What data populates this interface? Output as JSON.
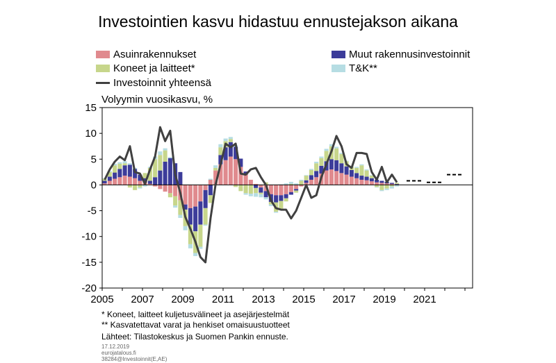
{
  "title": "Investointien kasvu hidastuu ennustejakson aikana",
  "legend": {
    "items": [
      {
        "label": "Asuinrakennukset",
        "color": "#e08a8e",
        "kind": "bar"
      },
      {
        "label": "Muut rakennusinvestoinnit",
        "color": "#3c3c9a",
        "kind": "bar"
      },
      {
        "label": "Koneet ja laitteet*",
        "color": "#c7d68b",
        "kind": "bar"
      },
      {
        "label": "T&K**",
        "color": "#b6dde3",
        "kind": "bar"
      },
      {
        "label": "Investoinnit yhteensä",
        "color": "#404040",
        "kind": "line"
      }
    ]
  },
  "notes": [
    "* Koneet, laitteet kuljetusvälineet ja asejärjestelmät",
    "** Kasvatettavat varat ja henkiset omaisuustuotteet",
    "Lähteet: Tilastokeskus ja Suomen Pankin ennuste."
  ],
  "footer": [
    "17.12.2019",
    "eurojatalous.fi",
    "38284@Investoinnit(E,AE)"
  ],
  "chart_data": {
    "type": "bar",
    "title": "Investointien kasvu hidastuu ennustejakson aikana",
    "ylabel": "Volyymin vuosikasvu, %",
    "xlabel": "",
    "ylim": [
      -20,
      15
    ],
    "yticks": [
      15,
      10,
      5,
      0,
      -5,
      -10,
      -15,
      -20
    ],
    "xticks": [
      "2005",
      "2007",
      "2009",
      "2011",
      "2013",
      "2015",
      "2017",
      "2019",
      "2021"
    ],
    "x_start_year": 2005,
    "stacked": true,
    "quarters": [
      "2005Q1",
      "2005Q2",
      "2005Q3",
      "2005Q4",
      "2006Q1",
      "2006Q2",
      "2006Q3",
      "2006Q4",
      "2007Q1",
      "2007Q2",
      "2007Q3",
      "2007Q4",
      "2008Q1",
      "2008Q2",
      "2008Q3",
      "2008Q4",
      "2009Q1",
      "2009Q2",
      "2009Q3",
      "2009Q4",
      "2010Q1",
      "2010Q2",
      "2010Q3",
      "2010Q4",
      "2011Q1",
      "2011Q2",
      "2011Q3",
      "2011Q4",
      "2012Q1",
      "2012Q2",
      "2012Q3",
      "2012Q4",
      "2013Q1",
      "2013Q2",
      "2013Q3",
      "2013Q4",
      "2014Q1",
      "2014Q2",
      "2014Q3",
      "2014Q4",
      "2015Q1",
      "2015Q2",
      "2015Q3",
      "2015Q4",
      "2016Q1",
      "2016Q2",
      "2016Q3",
      "2016Q4",
      "2017Q1",
      "2017Q2",
      "2017Q3",
      "2017Q4",
      "2018Q1",
      "2018Q2",
      "2018Q3",
      "2018Q4",
      "2019Q1",
      "2019Q2",
      "2019Q3"
    ],
    "series": [
      {
        "name": "Asuinrakennukset",
        "color": "#e08a8e",
        "values": [
          0.3,
          0.8,
          1.2,
          1.5,
          1.8,
          1.6,
          1.3,
          0.8,
          0.5,
          0.2,
          -0.3,
          -0.8,
          -1.3,
          -1.6,
          -2.2,
          -3.0,
          -3.8,
          -4.5,
          -4.2,
          -3.2,
          -1.0,
          1.0,
          2.8,
          4.0,
          4.8,
          5.5,
          5.0,
          3.5,
          2.0,
          1.0,
          0.2,
          -0.5,
          -1.2,
          -1.8,
          -2.0,
          -2.0,
          -1.8,
          -1.4,
          -0.8,
          -0.3,
          0.4,
          1.0,
          1.5,
          2.2,
          2.8,
          3.0,
          2.7,
          2.3,
          2.0,
          1.6,
          1.3,
          1.0,
          0.9,
          0.7,
          0.5,
          0.4,
          0.3,
          0.2,
          0.1
        ]
      },
      {
        "name": "Muut rakennusinvestoinnit",
        "color": "#3c3c9a",
        "values": [
          0.5,
          0.8,
          1.2,
          1.6,
          2.0,
          2.3,
          1.8,
          1.2,
          0.8,
          0.6,
          1.5,
          2.8,
          4.5,
          5.2,
          4.2,
          2.5,
          -1.0,
          -3.2,
          -4.8,
          -4.5,
          -3.5,
          -2.0,
          0.0,
          1.8,
          2.5,
          2.8,
          2.4,
          1.6,
          0.6,
          0.0,
          -0.6,
          -1.0,
          -1.2,
          -1.5,
          -1.4,
          -1.1,
          -0.8,
          -0.5,
          -0.3,
          0.0,
          0.5,
          0.9,
          1.2,
          1.5,
          1.8,
          2.0,
          2.1,
          1.9,
          1.6,
          1.3,
          1.0,
          0.8,
          0.7,
          0.6,
          0.5,
          0.4,
          0.3,
          0.2,
          0.1
        ]
      },
      {
        "name": "Koneet ja laitteet*",
        "color": "#c7d68b",
        "values": [
          0.4,
          0.9,
          1.4,
          1.0,
          0.4,
          -0.5,
          -1.0,
          -0.5,
          1.0,
          2.5,
          3.5,
          3.0,
          2.2,
          -0.8,
          -1.8,
          -2.8,
          -3.2,
          -3.8,
          -4.2,
          -4.3,
          -3.2,
          -1.5,
          0.5,
          1.5,
          1.2,
          0.6,
          -0.4,
          -1.2,
          -1.6,
          -1.7,
          -1.0,
          -0.3,
          0.5,
          -0.5,
          -1.8,
          -1.5,
          -0.6,
          0.2,
          -0.4,
          0.8,
          0.9,
          1.0,
          1.5,
          1.5,
          2.0,
          2.5,
          2.3,
          1.8,
          1.0,
          0.6,
          1.0,
          2.0,
          1.2,
          0.5,
          -0.4,
          -1.0,
          -0.7,
          -0.3,
          0.2
        ]
      },
      {
        "name": "T&K**",
        "color": "#b6dde3",
        "values": [
          0.1,
          0.2,
          0.3,
          0.3,
          0.4,
          0.3,
          0.2,
          -0.2,
          -0.3,
          0.2,
          0.5,
          0.7,
          0.4,
          0.2,
          -0.4,
          -0.6,
          -0.8,
          -0.8,
          -0.6,
          -0.4,
          -0.2,
          0.2,
          0.5,
          0.6,
          0.5,
          0.4,
          0.3,
          0.0,
          -0.3,
          -0.5,
          -0.7,
          -0.6,
          -0.4,
          -0.3,
          -0.2,
          0.1,
          0.3,
          0.4,
          0.3,
          0.2,
          0.1,
          0.2,
          0.3,
          0.3,
          0.4,
          0.4,
          0.3,
          0.2,
          0.1,
          0.1,
          0.2,
          0.2,
          0.2,
          0.1,
          -0.1,
          -0.2,
          -0.3,
          -0.4,
          -0.3
        ]
      }
    ],
    "total_line": {
      "name": "Investoinnit yhteensä",
      "color": "#404040",
      "values": [
        1.0,
        3.0,
        4.5,
        5.5,
        4.8,
        7.5,
        2.5,
        2.2,
        0.2,
        3.0,
        5.5,
        11.2,
        8.5,
        10.5,
        2.0,
        -1.5,
        -6.2,
        -8.5,
        -11.0,
        -14.0,
        -15.0,
        -6.5,
        0.0,
        4.0,
        8.0,
        7.3,
        8.0,
        2.2,
        2.0,
        3.0,
        3.3,
        1.5,
        0.0,
        -3.0,
        -4.5,
        -4.8,
        -4.8,
        -6.5,
        -5.0,
        -2.5,
        0.0,
        -2.5,
        -2.0,
        1.5,
        4.0,
        6.5,
        9.5,
        7.5,
        4.0,
        3.3,
        6.2,
        6.2,
        6.0,
        2.5,
        1.0,
        3.5,
        0.5,
        2.0,
        0.5
      ]
    },
    "forecast": [
      {
        "year": 2020,
        "value": 0.8
      },
      {
        "year": 2021,
        "value": 0.5
      },
      {
        "year": 2022,
        "value": 2.0
      }
    ]
  }
}
